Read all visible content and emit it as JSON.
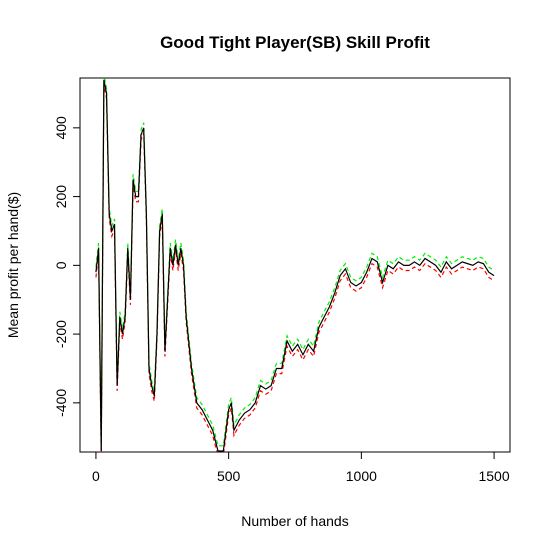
{
  "chart_data": {
    "type": "line",
    "title": "Good Tight Player(SB) Skill Profit",
    "xlabel": "Number of hands",
    "ylabel": "Mean profit per hand($)",
    "x": [
      0,
      10,
      20,
      30,
      40,
      50,
      60,
      70,
      80,
      90,
      100,
      110,
      120,
      130,
      140,
      150,
      160,
      170,
      180,
      190,
      200,
      210,
      220,
      230,
      240,
      250,
      260,
      270,
      280,
      290,
      300,
      310,
      320,
      330,
      340,
      360,
      380,
      400,
      420,
      440,
      460,
      480,
      500,
      510,
      520,
      540,
      560,
      580,
      600,
      620,
      640,
      660,
      680,
      700,
      720,
      740,
      760,
      780,
      800,
      820,
      840,
      860,
      880,
      900,
      920,
      940,
      960,
      980,
      1000,
      1020,
      1040,
      1060,
      1080,
      1100,
      1120,
      1140,
      1160,
      1180,
      1200,
      1220,
      1240,
      1260,
      1280,
      1300,
      1320,
      1340,
      1360,
      1380,
      1400,
      1420,
      1440,
      1460,
      1480,
      1500
    ],
    "series": [
      {
        "color": "#000000",
        "linestyle": "solid",
        "values": [
          -20,
          50,
          -540,
          540,
          500,
          150,
          100,
          120,
          -350,
          -150,
          -200,
          -150,
          50,
          -100,
          250,
          200,
          200,
          380,
          400,
          150,
          -300,
          -350,
          -380,
          -200,
          100,
          150,
          -250,
          -100,
          50,
          0,
          60,
          0,
          50,
          0,
          -150,
          -300,
          -400,
          -420,
          -450,
          -480,
          -540,
          -540,
          -420,
          -400,
          -480,
          -450,
          -430,
          -420,
          -400,
          -350,
          -360,
          -350,
          -300,
          -300,
          -220,
          -250,
          -230,
          -260,
          -230,
          -250,
          -180,
          -150,
          -120,
          -80,
          -30,
          -10,
          -50,
          -60,
          -50,
          -20,
          20,
          10,
          -50,
          0,
          -10,
          10,
          0,
          0,
          10,
          0,
          20,
          10,
          0,
          -20,
          10,
          -10,
          0,
          10,
          5,
          0,
          10,
          5,
          -20,
          -30
        ]
      },
      {
        "color": "#ff0000",
        "linestyle": "dashed",
        "values": [
          -35,
          35,
          -555,
          525,
          485,
          135,
          85,
          105,
          -365,
          -165,
          -215,
          -165,
          35,
          -115,
          235,
          185,
          185,
          365,
          385,
          135,
          -315,
          -365,
          -395,
          -215,
          85,
          135,
          -265,
          -115,
          35,
          -15,
          45,
          -15,
          35,
          -15,
          -165,
          -315,
          -415,
          -435,
          -465,
          -495,
          -555,
          -555,
          -435,
          -415,
          -495,
          -465,
          -445,
          -435,
          -415,
          -365,
          -375,
          -365,
          -315,
          -315,
          -235,
          -265,
          -245,
          -275,
          -245,
          -265,
          -195,
          -165,
          -135,
          -95,
          -45,
          -25,
          -65,
          -75,
          -65,
          -35,
          5,
          -5,
          -65,
          -15,
          -25,
          -5,
          -15,
          -15,
          -5,
          -15,
          5,
          -5,
          -15,
          -35,
          -5,
          -25,
          -15,
          -5,
          -10,
          -15,
          -5,
          -10,
          -35,
          -45
        ]
      },
      {
        "color": "#00ee00",
        "linestyle": "dashed",
        "values": [
          -5,
          65,
          -525,
          555,
          515,
          165,
          115,
          135,
          -335,
          -135,
          -185,
          -135,
          65,
          -85,
          265,
          215,
          215,
          395,
          415,
          165,
          -285,
          -335,
          -365,
          -185,
          115,
          165,
          -235,
          -85,
          65,
          15,
          75,
          15,
          65,
          15,
          -135,
          -285,
          -385,
          -405,
          -435,
          -465,
          -525,
          -525,
          -405,
          -385,
          -465,
          -435,
          -415,
          -405,
          -385,
          -335,
          -345,
          -335,
          -285,
          -285,
          -205,
          -235,
          -215,
          -245,
          -215,
          -235,
          -165,
          -135,
          -105,
          -65,
          -15,
          5,
          -35,
          -45,
          -35,
          -5,
          35,
          25,
          -35,
          15,
          5,
          25,
          15,
          15,
          25,
          15,
          35,
          25,
          15,
          -5,
          25,
          5,
          15,
          25,
          20,
          15,
          25,
          20,
          -5,
          -15
        ]
      }
    ],
    "xlim": [
      -60,
      1560
    ],
    "ylim": [
      -543,
      545
    ],
    "xticks": [
      0,
      500,
      1000,
      1500
    ],
    "yticks": [
      -400,
      -200,
      0,
      200,
      400
    ]
  }
}
